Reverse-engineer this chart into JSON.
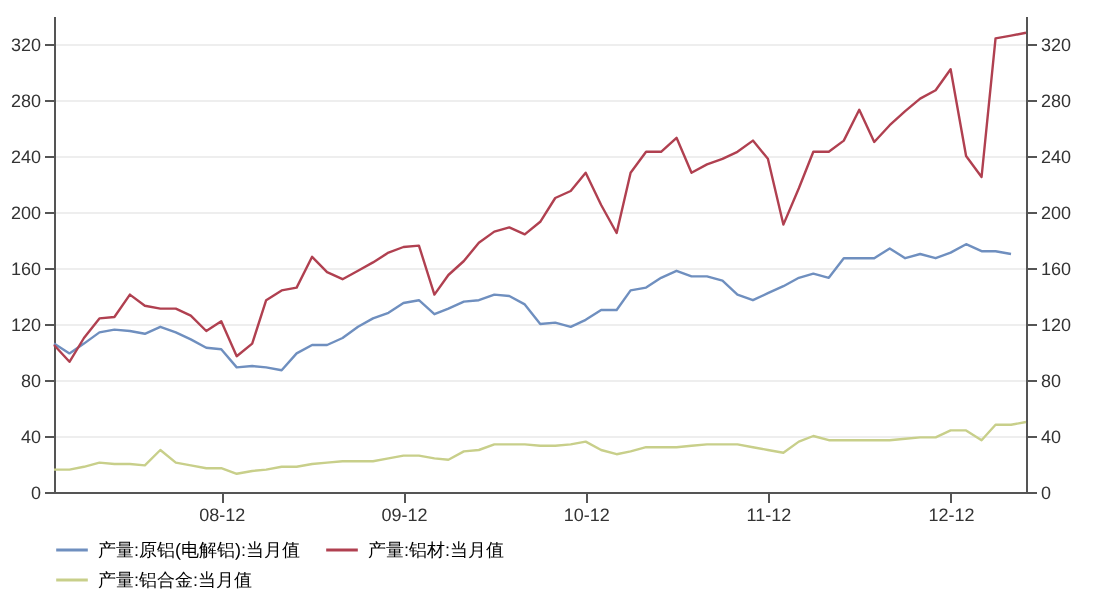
{
  "chart_data": {
    "type": "line",
    "x": [
      "2008-01",
      "2008-02",
      "2008-03",
      "2008-04",
      "2008-05",
      "2008-06",
      "2008-07",
      "2008-08",
      "2008-09",
      "2008-10",
      "2008-11",
      "2008-12",
      "2009-01",
      "2009-02",
      "2009-03",
      "2009-04",
      "2009-05",
      "2009-06",
      "2009-07",
      "2009-08",
      "2009-09",
      "2009-10",
      "2009-11",
      "2009-12",
      "2010-01",
      "2010-02",
      "2010-03",
      "2010-04",
      "2010-05",
      "2010-06",
      "2010-07",
      "2010-08",
      "2010-09",
      "2010-10",
      "2010-11",
      "2010-12",
      "2011-01",
      "2011-02",
      "2011-03",
      "2011-04",
      "2011-05",
      "2011-06",
      "2011-07",
      "2011-08",
      "2011-09",
      "2011-10",
      "2011-11",
      "2011-12",
      "2012-01",
      "2012-02",
      "2012-03",
      "2012-04",
      "2012-05",
      "2012-06",
      "2012-07",
      "2012-08",
      "2012-09",
      "2012-10",
      "2012-11",
      "2012-12",
      "2013-01",
      "2013-02",
      "2013-03",
      "2013-04",
      "2013-05"
    ],
    "series": [
      {
        "name": "产量:原铝(电解铝):当月值",
        "color": "#6f8fbf",
        "values": [
          106,
          99,
          106,
          114,
          116,
          115,
          113,
          118,
          114,
          109,
          103,
          102,
          89,
          90,
          89,
          87,
          99,
          105,
          105,
          110,
          118,
          124,
          128,
          135,
          137,
          127,
          131,
          136,
          137,
          141,
          140,
          134,
          120,
          121,
          118,
          123,
          130,
          130,
          144,
          146,
          153,
          158,
          154,
          154,
          151,
          141,
          137,
          142,
          147,
          153,
          156,
          153,
          167,
          167,
          167,
          174,
          167,
          170,
          167,
          171,
          177,
          172,
          172,
          170,
          null
        ]
      },
      {
        "name": "产量:铝材:当月值",
        "color": "#b04050",
        "values": [
          105,
          93,
          110,
          124,
          125,
          141,
          133,
          131,
          131,
          126,
          115,
          122,
          97,
          106,
          137,
          144,
          146,
          168,
          157,
          152,
          158,
          164,
          171,
          175,
          176,
          141,
          155,
          165,
          178,
          186,
          189,
          184,
          193,
          210,
          215,
          228,
          205,
          185,
          228,
          243,
          243,
          253,
          228,
          234,
          238,
          243,
          251,
          238,
          191,
          217,
          243,
          243,
          251,
          273,
          250,
          262,
          272,
          281,
          287,
          302,
          240,
          225,
          324,
          326,
          328
        ]
      },
      {
        "name": "产量:铝合金:当月值",
        "color": "#c8cf8a",
        "values": [
          16,
          16,
          18,
          21,
          20,
          20,
          19,
          30,
          21,
          19,
          17,
          17,
          13,
          15,
          16,
          18,
          18,
          20,
          21,
          22,
          22,
          22,
          24,
          26,
          26,
          24,
          23,
          29,
          30,
          34,
          34,
          34,
          33,
          33,
          34,
          36,
          30,
          27,
          29,
          32,
          32,
          32,
          33,
          34,
          34,
          34,
          32,
          30,
          28,
          36,
          40,
          37,
          37,
          37,
          37,
          37,
          38,
          39,
          39,
          44,
          44,
          37,
          48,
          48,
          50
        ]
      }
    ],
    "xlim": [
      "2008-01",
      "2013-05"
    ],
    "xticks": [
      {
        "value": "2008-12",
        "label": "08-12"
      },
      {
        "value": "2009-12",
        "label": "09-12"
      },
      {
        "value": "2010-12",
        "label": "10-12"
      },
      {
        "value": "2011-12",
        "label": "11-12"
      },
      {
        "value": "2012-12",
        "label": "12-12"
      }
    ],
    "ylim": [
      0,
      340
    ],
    "yticks": [
      0,
      40,
      80,
      120,
      160,
      200,
      240,
      280,
      320
    ],
    "y2lim": [
      0,
      340
    ],
    "y2ticks": [
      0,
      40,
      80,
      120,
      160,
      200,
      240,
      280,
      320
    ],
    "grid": "y",
    "legend": "bottom"
  }
}
